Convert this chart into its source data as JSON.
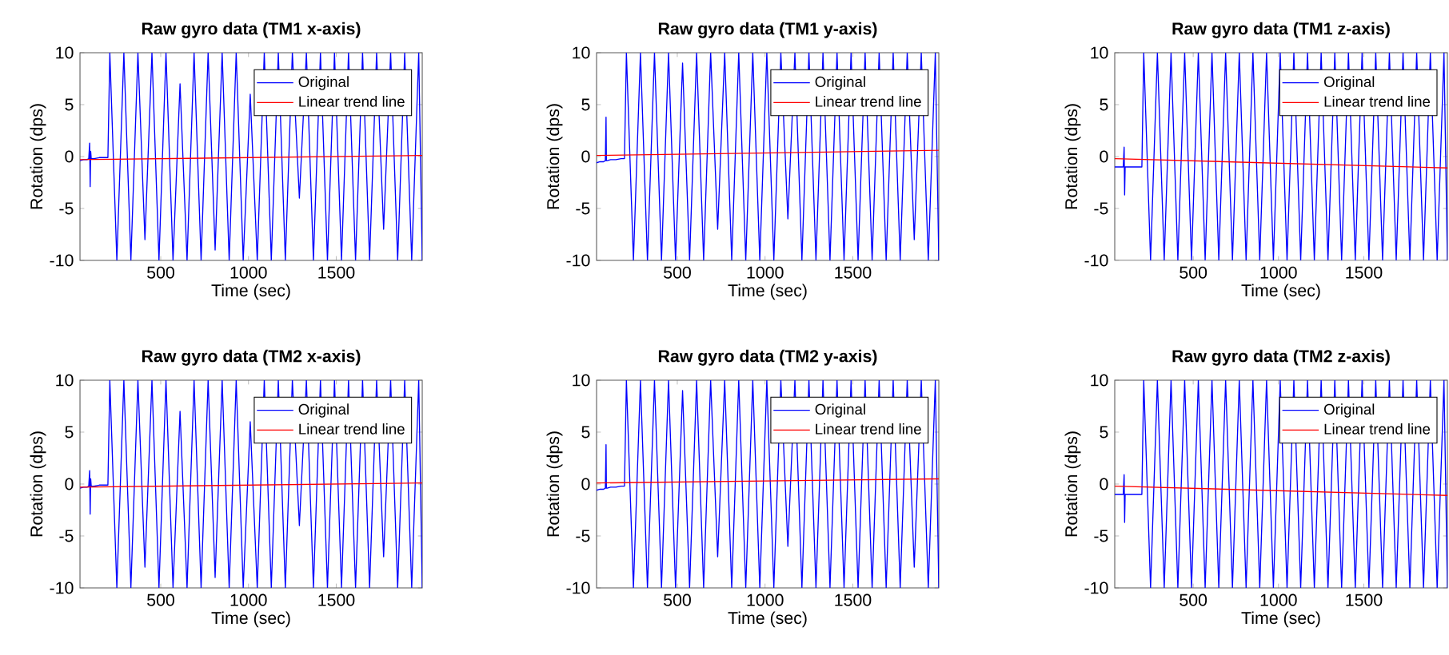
{
  "chart_data": [
    {
      "type": "line",
      "title": "Raw gyro data (TM1 x-axis)",
      "xlabel": "Time (sec)",
      "ylabel": "Rotation (dps)",
      "xlim": [
        40,
        1990
      ],
      "ylim": [
        -10,
        10
      ],
      "xticks": [
        500,
        1000,
        1500
      ],
      "yticks": [
        -10,
        -5,
        0,
        5,
        10
      ],
      "legend": "top right",
      "grid": false,
      "marker": "none",
      "series": [
        {
          "name": "Original",
          "color": "#0000ff",
          "x": [
            40,
            60,
            80,
            90,
            95,
            98,
            101,
            104,
            120,
            150,
            180,
            199,
            210,
            250,
            290,
            330,
            370,
            410,
            450,
            490,
            530,
            570,
            610,
            650,
            690,
            730,
            770,
            810,
            850,
            890,
            930,
            970,
            1010,
            1050,
            1090,
            1130,
            1170,
            1210,
            1250,
            1290,
            1330,
            1370,
            1410,
            1450,
            1490,
            1530,
            1570,
            1610,
            1650,
            1690,
            1730,
            1770,
            1810,
            1850,
            1890,
            1930,
            1970,
            1990
          ],
          "values": [
            -0.4,
            -0.3,
            -0.3,
            -0.2,
            1.3,
            -2.9,
            0.5,
            -0.2,
            -0.2,
            -0.1,
            -0.1,
            -0.1,
            10,
            -10,
            10,
            -10,
            10,
            -8,
            10,
            -10,
            10,
            -10,
            7,
            -10,
            10,
            -10,
            10,
            -9,
            10,
            -10,
            10,
            -10,
            6,
            -10,
            10,
            -10,
            10,
            -10,
            10,
            -4,
            10,
            -10,
            10,
            -10,
            10,
            -10,
            10,
            -10,
            10,
            -10,
            10,
            -7,
            10,
            -10,
            10,
            -10,
            10,
            -10
          ]
        },
        {
          "name": "Linear trend line",
          "color": "#ff0000",
          "x": [
            40,
            1990
          ],
          "values": [
            -0.3,
            0.1
          ]
        }
      ]
    },
    {
      "type": "line",
      "title": "Raw gyro data (TM1 y-axis)",
      "xlabel": "Time (sec)",
      "ylabel": "Rotation (dps)",
      "xlim": [
        40,
        1990
      ],
      "ylim": [
        -10,
        10
      ],
      "xticks": [
        500,
        1000,
        1500
      ],
      "yticks": [
        -10,
        -5,
        0,
        5,
        10
      ],
      "legend": "top right",
      "grid": false,
      "marker": "none",
      "series": [
        {
          "name": "Original",
          "color": "#0000ff",
          "x": [
            40,
            60,
            80,
            90,
            94,
            96,
            100,
            120,
            150,
            180,
            199,
            210,
            250,
            290,
            330,
            370,
            410,
            450,
            490,
            530,
            570,
            610,
            650,
            690,
            730,
            770,
            810,
            850,
            890,
            930,
            970,
            1010,
            1050,
            1090,
            1130,
            1170,
            1210,
            1250,
            1290,
            1330,
            1370,
            1410,
            1450,
            1490,
            1530,
            1570,
            1610,
            1650,
            1690,
            1730,
            1770,
            1810,
            1850,
            1890,
            1930,
            1970,
            1990
          ],
          "values": [
            -0.6,
            -0.5,
            -0.5,
            -0.4,
            3.8,
            -0.4,
            -0.4,
            -0.3,
            -0.3,
            -0.2,
            -0.2,
            10,
            -10,
            10,
            -10,
            10,
            -10,
            10,
            -10,
            9,
            -10,
            10,
            -10,
            10,
            -7,
            10,
            -10,
            10,
            -10,
            10,
            -10,
            10,
            -10,
            10,
            -6,
            10,
            -10,
            10,
            -10,
            10,
            -10,
            10,
            -10,
            10,
            -10,
            10,
            -10,
            10,
            -10,
            10,
            -10,
            10,
            -8,
            10,
            -10,
            10,
            -10
          ]
        },
        {
          "name": "Linear trend line",
          "color": "#ff0000",
          "x": [
            40,
            1990
          ],
          "values": [
            0.1,
            0.6
          ]
        }
      ]
    },
    {
      "type": "line",
      "title": "Raw gyro data (TM1 z-axis)",
      "xlabel": "Time (sec)",
      "ylabel": "Rotation (dps)",
      "xlim": [
        40,
        1990
      ],
      "ylim": [
        -10,
        10
      ],
      "xticks": [
        500,
        1000,
        1500
      ],
      "yticks": [
        -10,
        -5,
        0,
        5,
        10
      ],
      "legend": "top right",
      "grid": false,
      "marker": "none",
      "series": [
        {
          "name": "Original",
          "color": "#0000ff",
          "x": [
            40,
            60,
            80,
            90,
            95,
            98,
            101,
            104,
            120,
            150,
            180,
            199,
            210,
            250,
            290,
            330,
            370,
            410,
            450,
            490,
            530,
            570,
            610,
            650,
            690,
            730,
            770,
            810,
            850,
            890,
            930,
            970,
            1010,
            1050,
            1090,
            1130,
            1170,
            1210,
            1250,
            1290,
            1330,
            1370,
            1410,
            1450,
            1490,
            1530,
            1570,
            1610,
            1650,
            1690,
            1730,
            1770,
            1810,
            1850,
            1890,
            1930,
            1970,
            1990
          ],
          "values": [
            -1,
            -1,
            -1,
            -1,
            0.9,
            -3.7,
            -1,
            -1,
            -1,
            -1,
            -1,
            -1,
            10,
            -10,
            10,
            -10,
            10,
            -10,
            10,
            -10,
            10,
            -10,
            10,
            -10,
            10,
            -10,
            10,
            -10,
            10,
            -10,
            10,
            -10,
            10,
            -10,
            10,
            -10,
            10,
            -10,
            10,
            -10,
            10,
            -10,
            10,
            -10,
            10,
            -10,
            10,
            -10,
            10,
            -10,
            10,
            -10,
            10,
            -10,
            10,
            -10,
            10,
            -10
          ]
        },
        {
          "name": "Linear trend line",
          "color": "#ff0000",
          "x": [
            40,
            1990
          ],
          "values": [
            -0.2,
            -1.1
          ]
        }
      ]
    },
    {
      "type": "line",
      "title": "Raw gyro data (TM2 x-axis)",
      "xlabel": "Time (sec)",
      "ylabel": "Rotation (dps)",
      "xlim": [
        40,
        1990
      ],
      "ylim": [
        -10,
        10
      ],
      "xticks": [
        500,
        1000,
        1500
      ],
      "yticks": [
        -10,
        -5,
        0,
        5,
        10
      ],
      "legend": "top right",
      "grid": false,
      "marker": "none",
      "series": [
        {
          "name": "Original",
          "color": "#0000ff",
          "x": [
            40,
            60,
            80,
            90,
            95,
            98,
            101,
            104,
            120,
            150,
            180,
            199,
            210,
            250,
            290,
            330,
            370,
            410,
            450,
            490,
            530,
            570,
            610,
            650,
            690,
            730,
            770,
            810,
            850,
            890,
            930,
            970,
            1010,
            1050,
            1090,
            1130,
            1170,
            1210,
            1250,
            1290,
            1330,
            1370,
            1410,
            1450,
            1490,
            1530,
            1570,
            1610,
            1650,
            1690,
            1730,
            1770,
            1810,
            1850,
            1890,
            1930,
            1970,
            1990
          ],
          "values": [
            -0.4,
            -0.3,
            -0.3,
            -0.2,
            1.3,
            -2.9,
            0.5,
            -0.2,
            -0.2,
            -0.1,
            -0.1,
            -0.1,
            10,
            -10,
            10,
            -10,
            10,
            -8,
            10,
            -10,
            10,
            -10,
            7,
            -10,
            10,
            -10,
            10,
            -9,
            10,
            -10,
            10,
            -10,
            6,
            -10,
            10,
            -10,
            10,
            -10,
            10,
            -4,
            10,
            -10,
            10,
            -10,
            10,
            -10,
            10,
            -10,
            10,
            -10,
            10,
            -7,
            10,
            -10,
            10,
            -10,
            10,
            -10
          ]
        },
        {
          "name": "Linear trend line",
          "color": "#ff0000",
          "x": [
            40,
            1990
          ],
          "values": [
            -0.3,
            0.1
          ]
        }
      ]
    },
    {
      "type": "line",
      "title": "Raw gyro data (TM2 y-axis)",
      "xlabel": "Time (sec)",
      "ylabel": "Rotation (dps)",
      "xlim": [
        40,
        1990
      ],
      "ylim": [
        -10,
        10
      ],
      "xticks": [
        500,
        1000,
        1500
      ],
      "yticks": [
        -10,
        -5,
        0,
        5,
        10
      ],
      "legend": "top right",
      "grid": false,
      "marker": "none",
      "series": [
        {
          "name": "Original",
          "color": "#0000ff",
          "x": [
            40,
            60,
            80,
            90,
            94,
            96,
            100,
            120,
            150,
            180,
            199,
            210,
            250,
            290,
            330,
            370,
            410,
            450,
            490,
            530,
            570,
            610,
            650,
            690,
            730,
            770,
            810,
            850,
            890,
            930,
            970,
            1010,
            1050,
            1090,
            1130,
            1170,
            1210,
            1250,
            1290,
            1330,
            1370,
            1410,
            1450,
            1490,
            1530,
            1570,
            1610,
            1650,
            1690,
            1730,
            1770,
            1810,
            1850,
            1890,
            1930,
            1970,
            1990
          ],
          "values": [
            -0.6,
            -0.5,
            -0.5,
            -0.4,
            3.8,
            -0.4,
            -0.4,
            -0.3,
            -0.3,
            -0.2,
            -0.2,
            10,
            -10,
            10,
            -10,
            10,
            -10,
            10,
            -10,
            9,
            -10,
            10,
            -10,
            10,
            -7,
            10,
            -10,
            10,
            -10,
            10,
            -10,
            10,
            -10,
            10,
            -6,
            10,
            -10,
            10,
            -10,
            10,
            -10,
            10,
            -10,
            10,
            -10,
            10,
            -10,
            10,
            -10,
            10,
            -10,
            10,
            -8,
            10,
            -10,
            10,
            -10
          ]
        },
        {
          "name": "Linear trend line",
          "color": "#ff0000",
          "x": [
            40,
            1990
          ],
          "values": [
            0.1,
            0.5
          ]
        }
      ]
    },
    {
      "type": "line",
      "title": "Raw gyro data (TM2 z-axis)",
      "xlabel": "Time (sec)",
      "ylabel": "Rotation (dps)",
      "xlim": [
        40,
        1990
      ],
      "ylim": [
        -10,
        10
      ],
      "xticks": [
        500,
        1000,
        1500
      ],
      "yticks": [
        -10,
        -5,
        0,
        5,
        10
      ],
      "legend": "top right",
      "grid": false,
      "marker": "none",
      "series": [
        {
          "name": "Original",
          "color": "#0000ff",
          "x": [
            40,
            60,
            80,
            90,
            95,
            98,
            101,
            104,
            120,
            150,
            180,
            199,
            210,
            250,
            290,
            330,
            370,
            410,
            450,
            490,
            530,
            570,
            610,
            650,
            690,
            730,
            770,
            810,
            850,
            890,
            930,
            970,
            1010,
            1050,
            1090,
            1130,
            1170,
            1210,
            1250,
            1290,
            1330,
            1370,
            1410,
            1450,
            1490,
            1530,
            1570,
            1610,
            1650,
            1690,
            1730,
            1770,
            1810,
            1850,
            1890,
            1930,
            1970,
            1990
          ],
          "values": [
            -1,
            -1,
            -1,
            -1,
            0.9,
            -3.7,
            -1,
            -1,
            -1,
            -1,
            -1,
            -1,
            10,
            -10,
            10,
            -10,
            10,
            -10,
            10,
            -10,
            10,
            -10,
            10,
            -10,
            10,
            -10,
            10,
            -10,
            10,
            -10,
            10,
            -10,
            10,
            -10,
            10,
            -10,
            10,
            -10,
            10,
            -10,
            10,
            -10,
            10,
            -10,
            10,
            -10,
            10,
            -10,
            10,
            -10,
            10,
            -10,
            10,
            -10,
            10,
            -10,
            10,
            -10
          ]
        },
        {
          "name": "Linear trend line",
          "color": "#ff0000",
          "x": [
            40,
            1990
          ],
          "values": [
            -0.2,
            -1.1
          ]
        }
      ]
    }
  ]
}
